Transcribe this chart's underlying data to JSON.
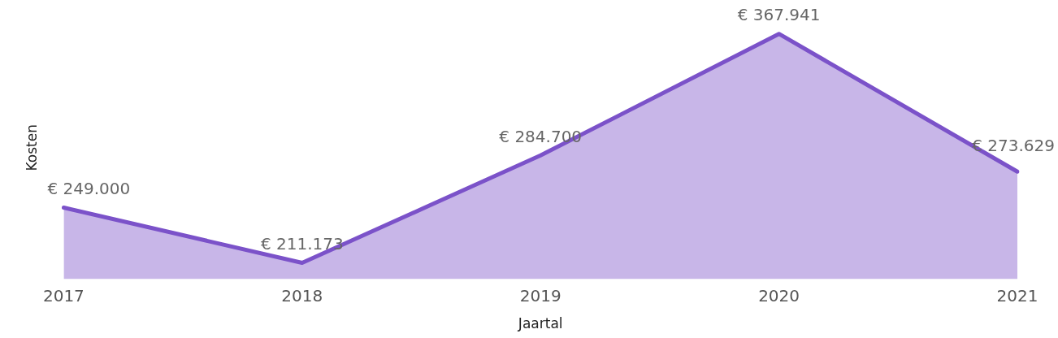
{
  "chart_data": {
    "type": "area",
    "xlabel": "Jaartal",
    "ylabel": "Kosten",
    "categories": [
      "2017",
      "2018",
      "2019",
      "2020",
      "2021"
    ],
    "series": [
      {
        "color": "#7b52c9",
        "values": [
          249000,
          211173,
          284700,
          367941,
          273629
        ],
        "value_labels": [
          "€ 249.000",
          "€ 211.173",
          "€ 284.700",
          "€ 367.941",
          "€ 273.629"
        ]
      }
    ],
    "grid": false,
    "legend": false,
    "tick_labels": "x"
  }
}
